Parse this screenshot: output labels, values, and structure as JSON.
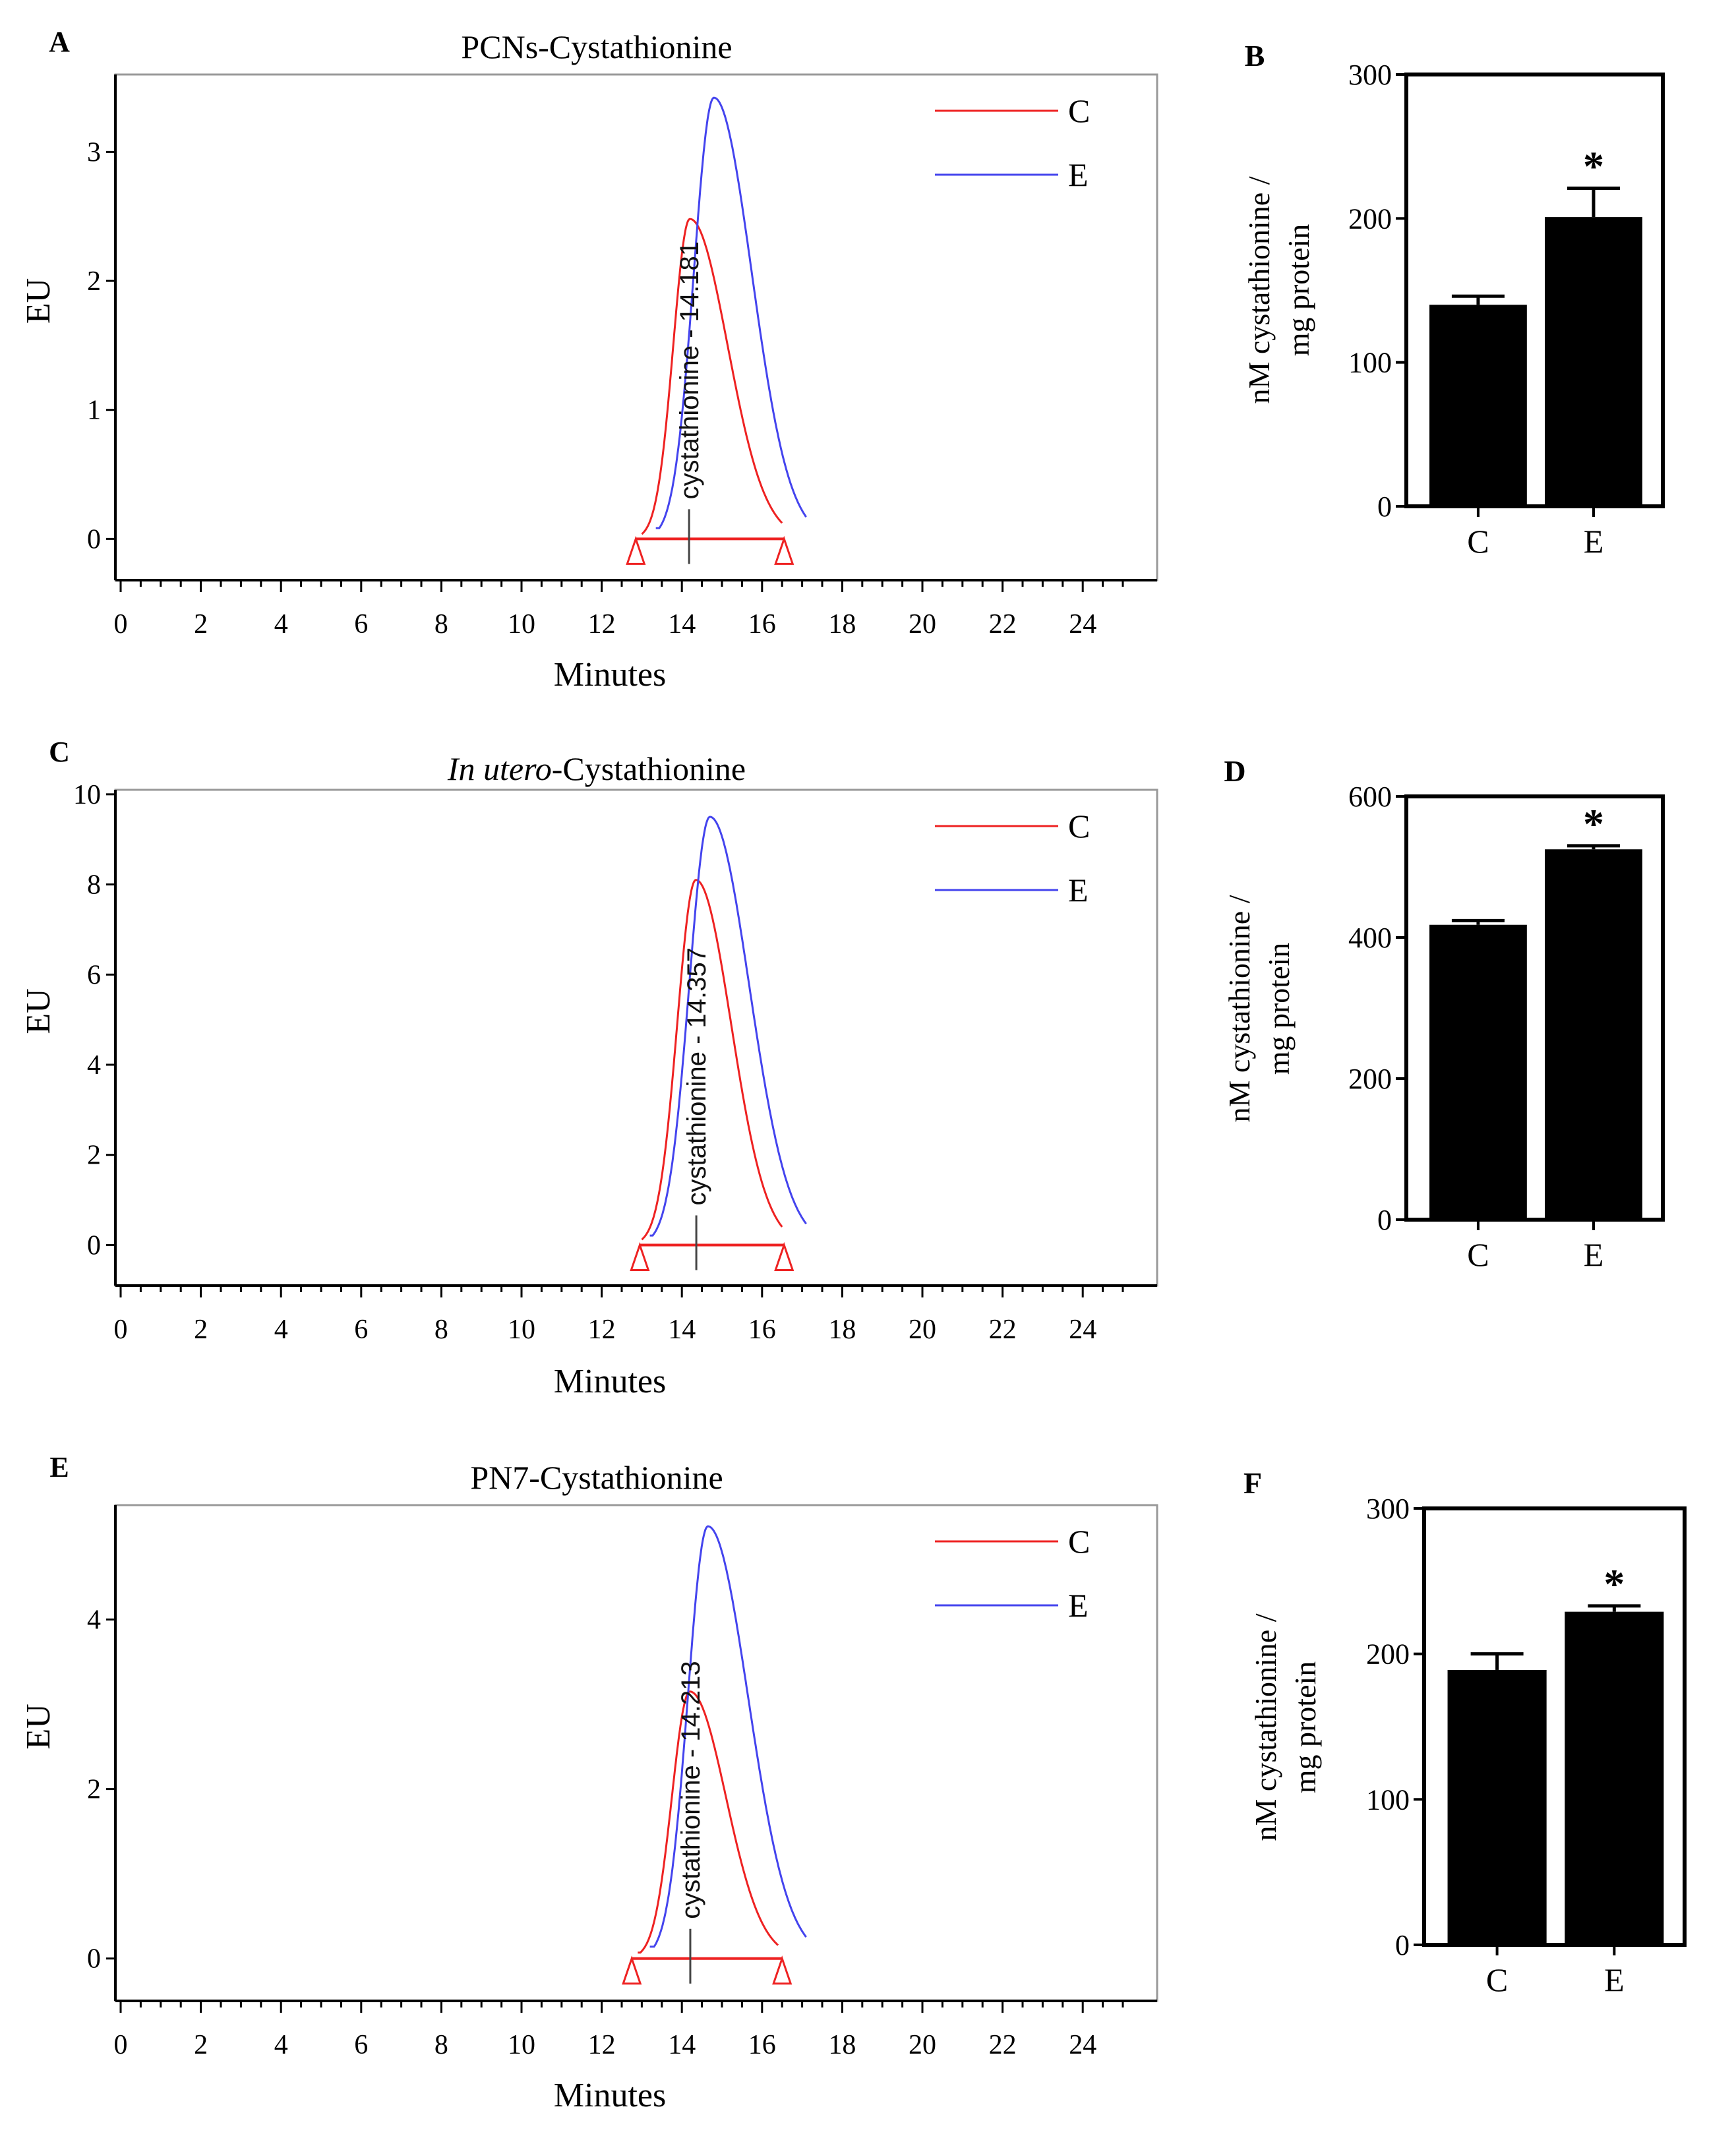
{
  "chart_data": [
    {
      "type": "line",
      "panel_label": "A",
      "title": "PCNs-Cystathionine",
      "title_italic_prefix": "",
      "xlabel": "Minutes",
      "ylabel": "EU",
      "xlim": [
        0,
        25
      ],
      "ylim": [
        -0.32,
        3.6
      ],
      "x_ticks": [
        0,
        2,
        4,
        6,
        8,
        10,
        12,
        14,
        16,
        18,
        20,
        22,
        24
      ],
      "y_ticks": [
        0,
        1,
        2,
        3
      ],
      "series": [
        {
          "name": "C",
          "color": "#ee2222",
          "start": 13.0,
          "peak_x": 14.2,
          "peak_y": 2.48,
          "end": 16.5,
          "end_y": 0.05
        },
        {
          "name": "E",
          "color": "#4444ee",
          "start": 13.35,
          "peak_x": 14.8,
          "peak_y": 3.42,
          "end": 17.1,
          "end_y": 0.12
        }
      ],
      "peak_annotation": "cystathionine - 14.181",
      "peak_annotation_x": 14.18,
      "integration_baseline": {
        "start": 12.85,
        "end": 16.55,
        "y": 0
      }
    },
    {
      "type": "bar",
      "panel_label": "B",
      "categories": [
        "C",
        "E"
      ],
      "values": [
        140,
        201
      ],
      "errors": [
        6,
        20
      ],
      "significance": [
        "",
        "*"
      ],
      "ylabel_lines": [
        "nM cystathionine /",
        "mg protein"
      ],
      "ylim": [
        0,
        300
      ],
      "y_ticks": [
        0,
        100,
        200,
        300
      ]
    },
    {
      "type": "line",
      "panel_label": "C",
      "title": "-Cystathionine",
      "title_italic_prefix": "In utero",
      "xlabel": "Minutes",
      "ylabel": "EU",
      "xlim": [
        0,
        25
      ],
      "ylim": [
        -0.9,
        10.1
      ],
      "x_ticks": [
        0,
        2,
        4,
        6,
        8,
        10,
        12,
        14,
        16,
        18,
        20,
        22,
        24
      ],
      "y_ticks": [
        0,
        2,
        4,
        6,
        8,
        10
      ],
      "series": [
        {
          "name": "C",
          "color": "#ee2222",
          "start": 13.0,
          "peak_x": 14.35,
          "peak_y": 8.1,
          "end": 16.5,
          "end_y": 0.1
        },
        {
          "name": "E",
          "color": "#4444ee",
          "start": 13.2,
          "peak_x": 14.7,
          "peak_y": 9.5,
          "end": 17.1,
          "end_y": 0.3
        }
      ],
      "peak_annotation": "cystathionine - 14.357",
      "peak_annotation_x": 14.36,
      "integration_baseline": {
        "start": 12.95,
        "end": 16.55,
        "y": 0
      }
    },
    {
      "type": "bar",
      "panel_label": "D",
      "categories": [
        "C",
        "E"
      ],
      "values": [
        418,
        525
      ],
      "errors": [
        6,
        5
      ],
      "significance": [
        "",
        "*"
      ],
      "ylabel_lines": [
        "nM cystathionine /",
        "mg protein"
      ],
      "ylim": [
        0,
        600
      ],
      "y_ticks": [
        0,
        200,
        400,
        600
      ]
    },
    {
      "type": "line",
      "panel_label": "E",
      "title": "PN7-Cystathionine",
      "title_italic_prefix": "",
      "xlabel": "Minutes",
      "ylabel": "EU",
      "xlim": [
        0,
        25
      ],
      "ylim": [
        -0.5,
        5.35
      ],
      "x_ticks": [
        0,
        2,
        4,
        6,
        8,
        10,
        12,
        14,
        16,
        18,
        20,
        22,
        24
      ],
      "y_ticks": [
        0,
        2,
        4
      ],
      "series": [
        {
          "name": "C",
          "color": "#ee2222",
          "start": 12.9,
          "peak_x": 14.2,
          "peak_y": 3.15,
          "end": 16.4,
          "end_y": 0.1
        },
        {
          "name": "E",
          "color": "#4444ee",
          "start": 13.2,
          "peak_x": 14.65,
          "peak_y": 5.1,
          "end": 17.1,
          "end_y": 0.2
        }
      ],
      "peak_annotation": "cystathionine - 14.213",
      "peak_annotation_x": 14.21,
      "integration_baseline": {
        "start": 12.75,
        "end": 16.5,
        "y": 0
      }
    },
    {
      "type": "bar",
      "panel_label": "F",
      "categories": [
        "C",
        "E"
      ],
      "values": [
        189,
        229
      ],
      "errors": [
        11,
        4
      ],
      "significance": [
        "",
        "*"
      ],
      "ylabel_lines": [
        "nM cystathionine /",
        "mg protein"
      ],
      "ylim": [
        0,
        300
      ],
      "y_ticks": [
        0,
        100,
        200,
        300
      ]
    }
  ]
}
